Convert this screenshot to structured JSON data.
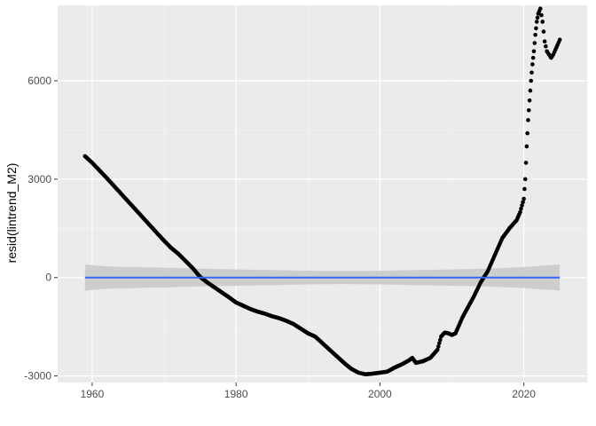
{
  "chart_data": {
    "type": "scatter",
    "title": "",
    "xlabel": "",
    "ylabel": "resid(lintrend_M2)",
    "xlim": [
      1955.2,
      2028.8
    ],
    "ylim": [
      -3200,
      8300
    ],
    "x_ticks": [
      1960,
      1980,
      2000,
      2020
    ],
    "x_tick_labels": [
      "1960",
      "1980",
      "2000",
      "2020"
    ],
    "y_ticks": [
      -3000,
      0,
      3000,
      6000
    ],
    "y_tick_labels": [
      "-3000",
      "0",
      "3000",
      "6000"
    ],
    "grid": true,
    "legend": "none",
    "point_color": "#000000",
    "fit_color": "#3366ff",
    "band_color": "#c8c8c8",
    "panel_background": "#ebebeb",
    "series": [
      {
        "kind": "points",
        "x": [
          1959.0,
          1960.0,
          1961.0,
          1962.0,
          1963.0,
          1964.0,
          1965.0,
          1966.0,
          1967.0,
          1968.0,
          1969.0,
          1970.0,
          1971.0,
          1972.0,
          1973.0,
          1974.0,
          1975.0,
          1976.0,
          1977.0,
          1978.0,
          1979.0,
          1980.0,
          1981.0,
          1982.0,
          1983.0,
          1984.0,
          1985.0,
          1986.0,
          1987.0,
          1988.0,
          1989.0,
          1990.0,
          1991.0,
          1992.0,
          1993.0,
          1994.0,
          1995.0,
          1996.0,
          1997.0,
          1998.0,
          1999.0,
          2000.0,
          2001.0,
          2002.0,
          2003.0,
          2004.0,
          2004.5,
          2005.0,
          2006.0,
          2007.0,
          2008.0,
          2008.5,
          2009.0,
          2009.5,
          2010.0,
          2010.5,
          2011.0,
          2011.5,
          2012.0,
          2013.0,
          2014.0,
          2015.0,
          2016.0,
          2017.0,
          2018.0,
          2019.0,
          2019.5,
          2020.0,
          2020.2,
          2020.4,
          2020.6,
          2020.8,
          2021.0,
          2021.2,
          2021.4,
          2021.6,
          2021.8,
          2022.0,
          2022.3,
          2022.6,
          2022.9,
          2023.2,
          2023.5,
          2023.8,
          2024.1,
          2024.4,
          2024.7,
          2025.0
        ],
        "y": [
          3700,
          3500,
          3270,
          3040,
          2800,
          2560,
          2320,
          2080,
          1840,
          1600,
          1360,
          1120,
          900,
          720,
          500,
          280,
          20,
          -150,
          -300,
          -450,
          -600,
          -760,
          -860,
          -960,
          -1040,
          -1100,
          -1180,
          -1240,
          -1320,
          -1420,
          -1560,
          -1700,
          -1800,
          -2000,
          -2200,
          -2400,
          -2600,
          -2780,
          -2900,
          -2950,
          -2930,
          -2900,
          -2870,
          -2750,
          -2650,
          -2530,
          -2450,
          -2600,
          -2550,
          -2450,
          -2200,
          -1800,
          -1680,
          -1700,
          -1750,
          -1700,
          -1450,
          -1200,
          -1000,
          -600,
          -150,
          200,
          700,
          1200,
          1500,
          1750,
          2000,
          2400,
          3000,
          4000,
          4800,
          5400,
          6000,
          6500,
          6900,
          7400,
          7800,
          8050,
          8200,
          7800,
          7200,
          6900,
          6800,
          6700,
          6800,
          6950,
          7100,
          7250
        ]
      },
      {
        "kind": "smooth",
        "x": [
          1959,
          2025
        ],
        "y": [
          0,
          0
        ],
        "band_x": [
          1959,
          1962,
          1970,
          1975,
          1980,
          1985,
          1990,
          1995,
          2000,
          2005,
          2010,
          2015,
          2020,
          2025
        ],
        "band_halfwidth": [
          400,
          340,
          300,
          270,
          250,
          230,
          210,
          200,
          210,
          230,
          250,
          270,
          320,
          400
        ]
      }
    ]
  }
}
